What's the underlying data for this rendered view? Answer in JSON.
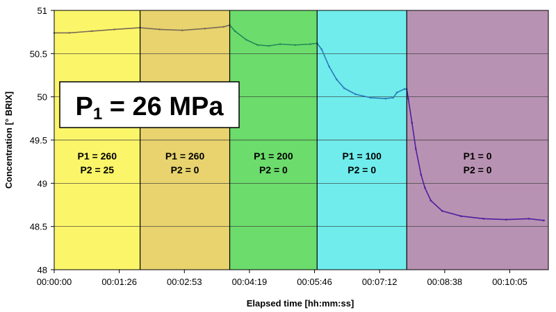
{
  "chart_data": {
    "type": "line",
    "title": "",
    "xlabel": "Elapsed time [hh:mm:ss]",
    "ylabel": "Concentration [° BRIX]",
    "xlim_seconds": [
      0,
      656
    ],
    "ylim": [
      48,
      51
    ],
    "grid": true,
    "x_tick_labels": [
      "00:00:00",
      "00:01:26",
      "00:02:53",
      "00:04:19",
      "00:05:46",
      "00:07:12",
      "00:08:38",
      "00:10:05"
    ],
    "x_tick_seconds": [
      0,
      86.4,
      172.8,
      259.2,
      345.6,
      432,
      518.4,
      604.8
    ],
    "y_ticks": [
      48,
      48.5,
      49,
      49.5,
      50,
      50.5,
      51
    ],
    "y_tick_labels": [
      "48",
      "48.5",
      "49",
      "49.5",
      "50",
      "50.5",
      "51"
    ],
    "annotation": {
      "main": "P",
      "sub": "1",
      "rest": " = 26 MPa"
    },
    "regions": [
      {
        "start": 0,
        "end": 114,
        "color": "#fbf56a",
        "line_color": "#7a6a55",
        "label1": "P1 = 260",
        "label2": "P2 = 25"
      },
      {
        "start": 114,
        "end": 233,
        "color": "#e8d36e",
        "line_color": "#7a6a55",
        "label1": "P1 = 260",
        "label2": "P2 = 0"
      },
      {
        "start": 233,
        "end": 349,
        "color": "#6cdc6c",
        "line_color": "#1f8a5a",
        "label1": "P1 = 200",
        "label2": "P2 = 0"
      },
      {
        "start": 349,
        "end": 468,
        "color": "#70ecec",
        "line_color": "#2a7ab8",
        "label1": "P1 = 100",
        "label2": "P2 = 0"
      },
      {
        "start": 468,
        "end": 656,
        "color": "#b892b2",
        "line_color": "#4a1fa0",
        "label1": "P1 = 0",
        "label2": "P2 = 0"
      }
    ],
    "series": [
      {
        "x": [
          0,
          20,
          50,
          80,
          114,
          140,
          170,
          200,
          225,
          233,
          240,
          255,
          270,
          285,
          300,
          320,
          340,
          349,
          355,
          365,
          375,
          385,
          400,
          420,
          440,
          450,
          455,
          465,
          468,
          470,
          475,
          480,
          487,
          492,
          500,
          515,
          540,
          570,
          600,
          630,
          650
        ],
        "y": [
          50.74,
          50.74,
          50.76,
          50.78,
          50.8,
          50.78,
          50.77,
          50.79,
          50.81,
          50.83,
          50.76,
          50.66,
          50.6,
          50.59,
          50.61,
          50.6,
          50.61,
          50.62,
          50.55,
          50.35,
          50.2,
          50.1,
          50.03,
          49.99,
          49.98,
          49.99,
          50.05,
          50.09,
          50.09,
          49.98,
          49.7,
          49.4,
          49.1,
          48.95,
          48.8,
          48.68,
          48.62,
          48.59,
          48.58,
          48.59,
          48.57
        ]
      }
    ]
  }
}
